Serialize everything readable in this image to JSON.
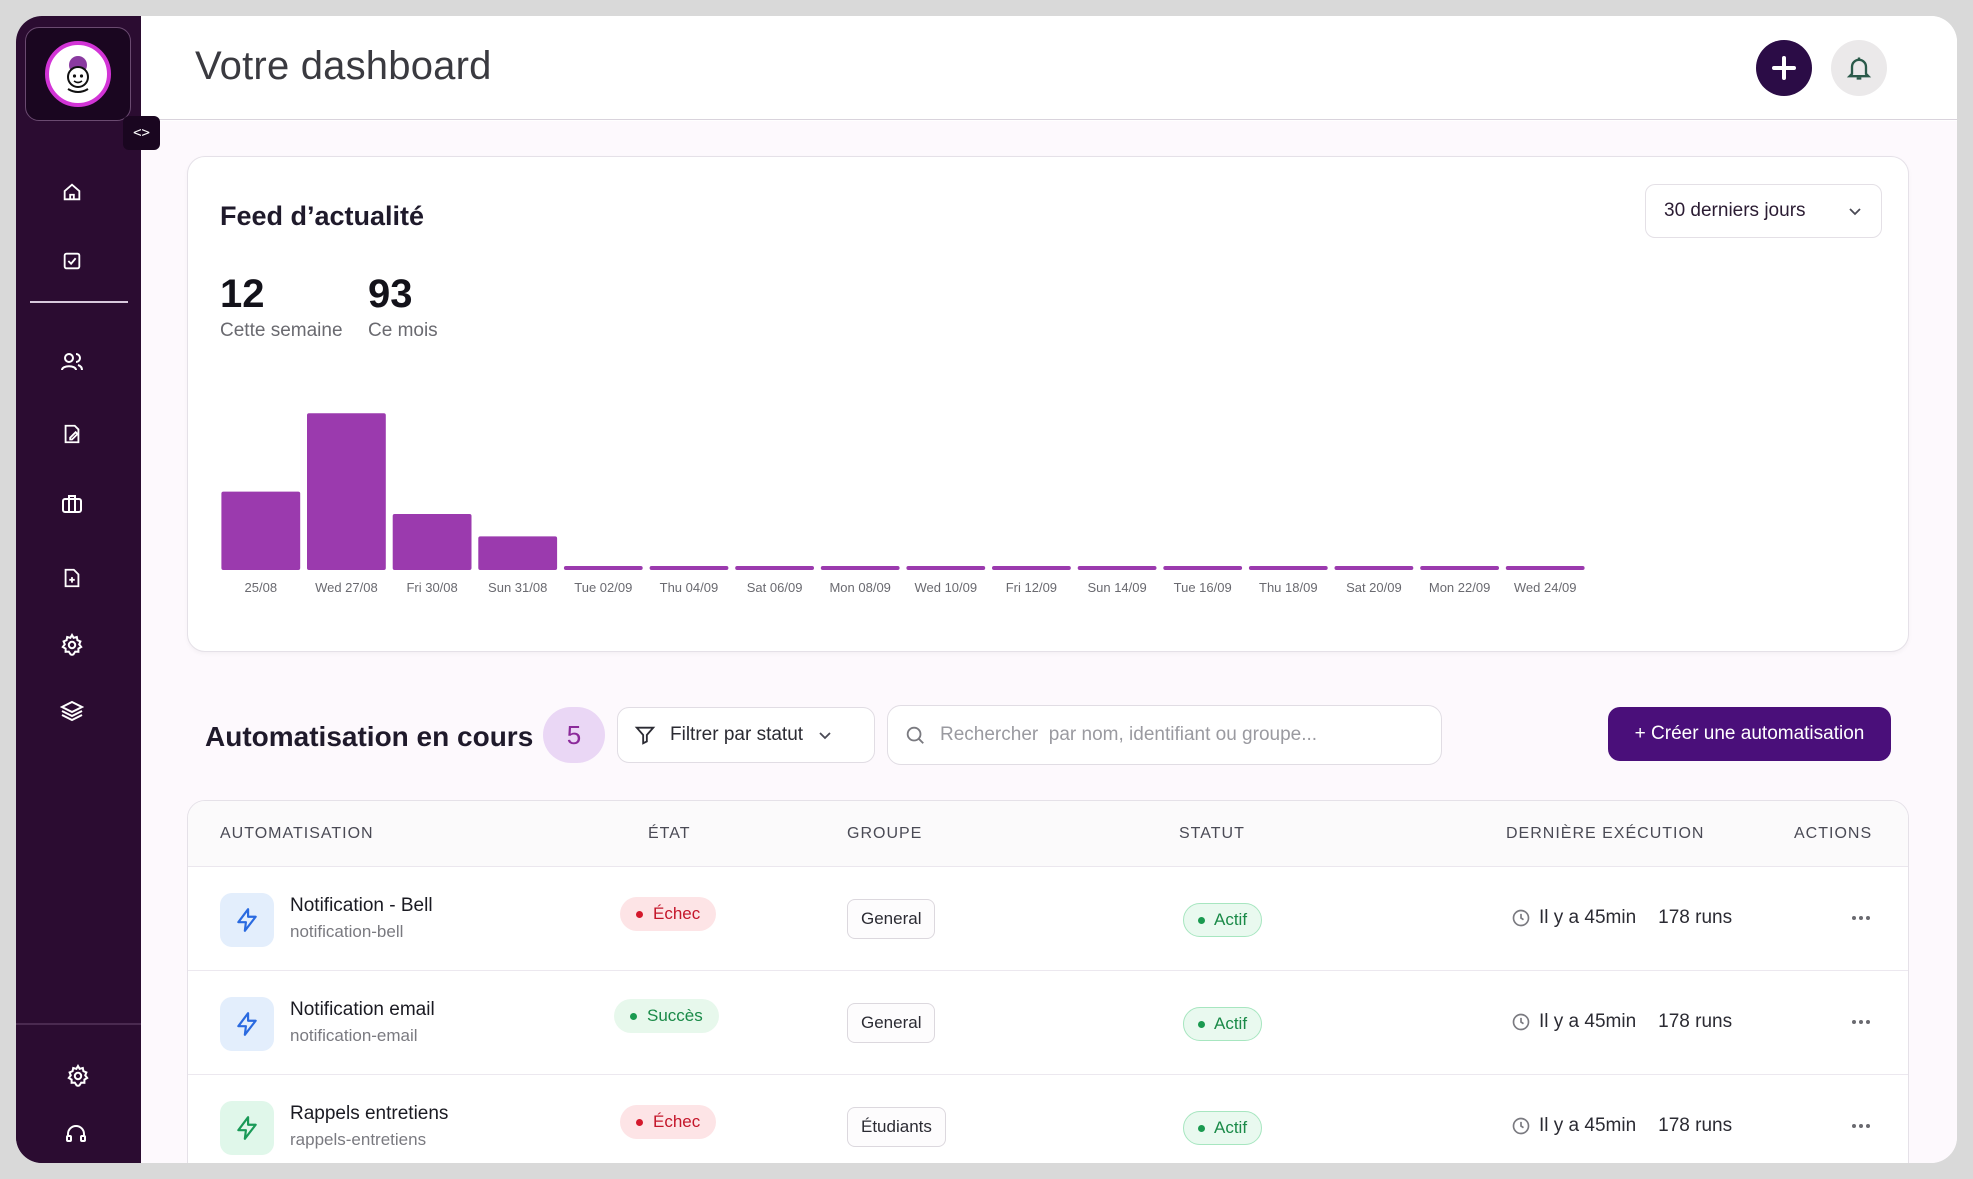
{
  "header": {
    "title": "Votre dashboard"
  },
  "feed": {
    "title": "Feed d’actualité",
    "period": "30 derniers jours",
    "stats": [
      {
        "value": "12",
        "label": "Cette semaine"
      },
      {
        "value": "93",
        "label": "Ce mois"
      }
    ]
  },
  "chart_data": {
    "type": "bar",
    "title": "",
    "xlabel": "",
    "ylabel": "",
    "categories": [
      "25/08",
      "Wed 27/08",
      "Fri 30/08",
      "Sun 31/08",
      "Tue 02/09",
      "Thu 04/09",
      "Sat 06/09",
      "Mon 08/09",
      "Wed 10/09",
      "Fri 12/09",
      "Sun 14/09",
      "Tue 16/09",
      "Thu 18/09",
      "Sat 20/09",
      "Mon 22/09",
      "Wed 24/09"
    ],
    "values": [
      28,
      56,
      20,
      12,
      0,
      0,
      0,
      0,
      0,
      0,
      0,
      0,
      0,
      0,
      0,
      0
    ],
    "ylim": [
      0,
      60
    ],
    "grid": false,
    "color": "#9b3aae"
  },
  "automations": {
    "title": "Automatisation en cours",
    "count": "5",
    "filter_label": "Filtrer par statut",
    "search_placeholder": "Rechercher  par nom, identifiant ou groupe...",
    "create_label": "+ Créer une automatisation",
    "columns": {
      "name": "AUTOMATISATION",
      "state": "ÉTAT",
      "group": "GROUPE",
      "status": "STATUT",
      "last_run": "DERNIÈRE EXÉCUTION",
      "actions": "ACTIONS"
    },
    "rows": [
      {
        "name": "Notification - Bell",
        "slug": "notification-bell",
        "state": "Échec",
        "group": "General",
        "status": "Actif",
        "last_run": "Il y a 45min",
        "runs": "178 runs"
      },
      {
        "name": "Notification email",
        "slug": "notification-email",
        "state": "Succès",
        "group": "General",
        "status": "Actif",
        "last_run": "Il y a 45min",
        "runs": "178 runs"
      },
      {
        "name": "Rappels entretiens",
        "slug": "rappels-entretiens",
        "state": "Échec",
        "group": "Étudiants",
        "status": "Actif",
        "last_run": "Il y a 45min",
        "runs": "178 runs"
      }
    ]
  },
  "colors": {
    "sidebar": "#2b0c31",
    "accent": "#4a0f7a",
    "bar": "#9b3aae",
    "success": "#1a8a48",
    "error": "#c4162a"
  }
}
